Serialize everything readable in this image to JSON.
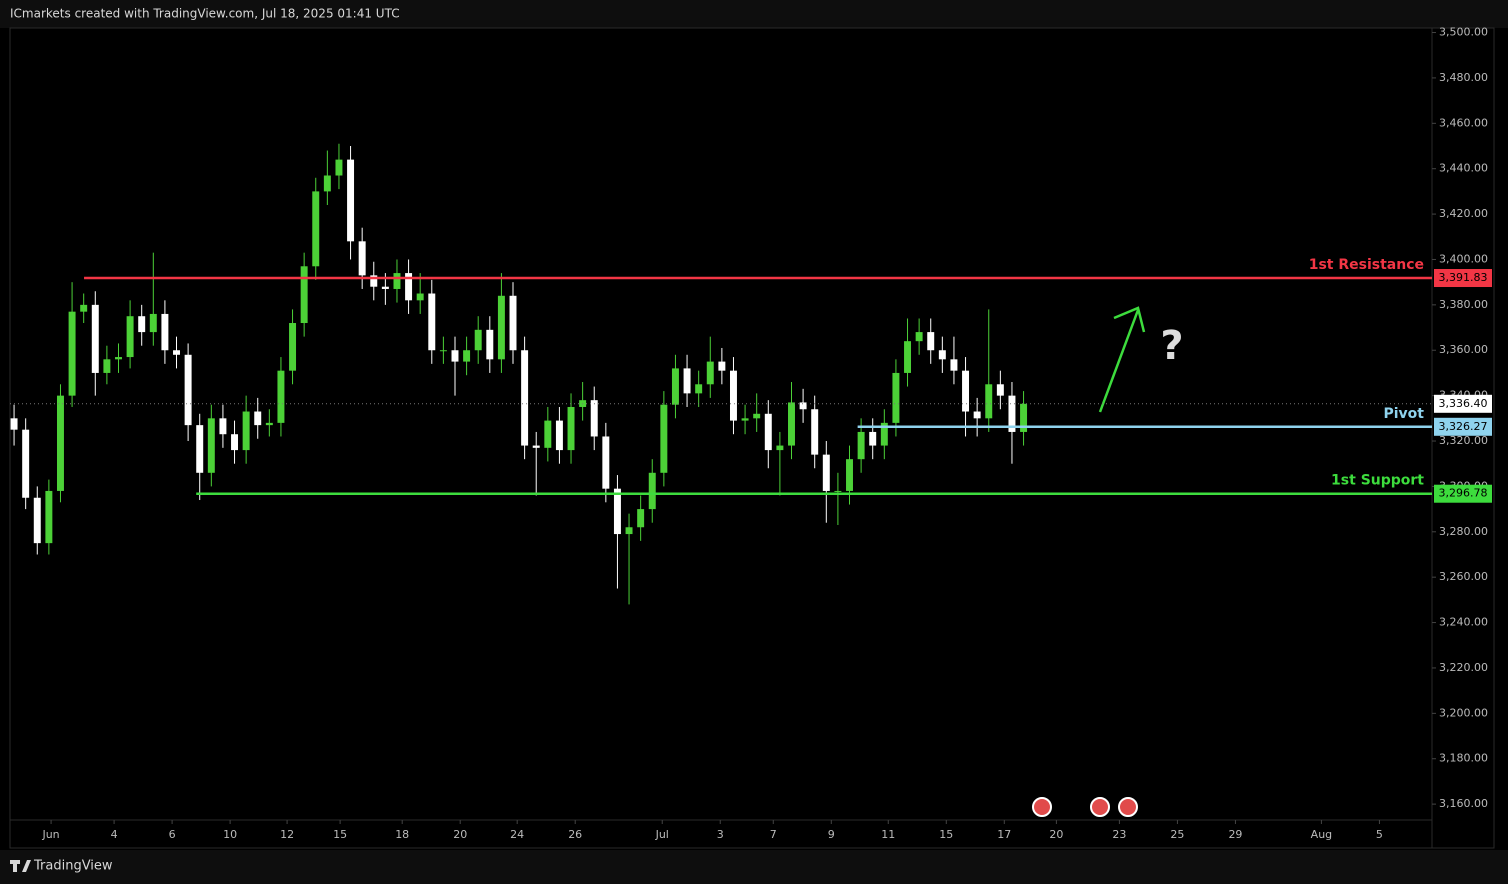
{
  "header": "ICmarkets created with TradingView.com, Jul 18, 2025 01:41 UTC",
  "footer": "TradingView",
  "chart_data": {
    "type": "candlestick",
    "up_color": "#4cd137",
    "down_color": "#ffffff",
    "xlim": [
      -0.35,
      122.2
    ],
    "xticks": [
      {
        "value": 3.19,
        "label": "Jun"
      },
      {
        "value": 8.62,
        "label": "4"
      },
      {
        "value": 13.62,
        "label": "6"
      },
      {
        "value": 18.62,
        "label": "10"
      },
      {
        "value": 23.53,
        "label": "12"
      },
      {
        "value": 28.1,
        "label": "15"
      },
      {
        "value": 33.45,
        "label": "18"
      },
      {
        "value": 38.45,
        "label": "20"
      },
      {
        "value": 43.36,
        "label": "24"
      },
      {
        "value": 48.36,
        "label": "26"
      },
      {
        "value": 55.86,
        "label": "Jul"
      },
      {
        "value": 60.86,
        "label": "3"
      },
      {
        "value": 65.43,
        "label": "7"
      },
      {
        "value": 70.43,
        "label": "9"
      },
      {
        "value": 75.34,
        "label": "11"
      },
      {
        "value": 80.34,
        "label": "15"
      },
      {
        "value": 85.34,
        "label": "17"
      },
      {
        "value": 89.83,
        "label": "20"
      },
      {
        "value": 95.26,
        "label": "23"
      },
      {
        "value": 100.26,
        "label": "25"
      },
      {
        "value": 105.26,
        "label": "29"
      },
      {
        "value": 112.67,
        "label": "Aug"
      },
      {
        "value": 117.67,
        "label": "5"
      }
    ],
    "ylim": [
      3153,
      3502
    ],
    "yticks": [
      {
        "value": 3160,
        "label": "3,160.00"
      },
      {
        "value": 3180,
        "label": "3,180.00"
      },
      {
        "value": 3200,
        "label": "3,200.00"
      },
      {
        "value": 3220,
        "label": "3,220.00"
      },
      {
        "value": 3240,
        "label": "3,240.00"
      },
      {
        "value": 3260,
        "label": "3,260.00"
      },
      {
        "value": 3280,
        "label": "3,280.00"
      },
      {
        "value": 3300,
        "label": "3,300.00"
      },
      {
        "value": 3320,
        "label": "3,320.00"
      },
      {
        "value": 3340,
        "label": "3,340.00"
      },
      {
        "value": 3360,
        "label": "3,360.00"
      },
      {
        "value": 3380,
        "label": "3,380.00"
      },
      {
        "value": 3400,
        "label": "3,400.00"
      },
      {
        "value": 3420,
        "label": "3,420.00"
      },
      {
        "value": 3440,
        "label": "3,440.00"
      },
      {
        "value": 3460,
        "label": "3,460.00"
      },
      {
        "value": 3480,
        "label": "3,480.00"
      },
      {
        "value": 3500,
        "label": "3,500.00"
      }
    ],
    "ohlc": [
      [
        3330,
        3336,
        3318,
        3325
      ],
      [
        3325,
        3330,
        3290,
        3295
      ],
      [
        3295,
        3300,
        3270,
        3275
      ],
      [
        3275,
        3303,
        3270,
        3298
      ],
      [
        3298,
        3345,
        3293,
        3340
      ],
      [
        3340,
        3390,
        3335,
        3377
      ],
      [
        3377,
        3385,
        3372,
        3380
      ],
      [
        3380,
        3386,
        3340,
        3350
      ],
      [
        3350,
        3362,
        3345,
        3356
      ],
      [
        3356,
        3363,
        3350,
        3357
      ],
      [
        3357,
        3382,
        3352,
        3375
      ],
      [
        3375,
        3380,
        3362,
        3368
      ],
      [
        3368,
        3403,
        3362,
        3376
      ],
      [
        3376,
        3382,
        3354,
        3360
      ],
      [
        3360,
        3366,
        3352,
        3358
      ],
      [
        3358,
        3363,
        3320,
        3327
      ],
      [
        3327,
        3332,
        3294,
        3306
      ],
      [
        3306,
        3336,
        3300,
        3330
      ],
      [
        3330,
        3336,
        3317,
        3323
      ],
      [
        3323,
        3329,
        3310,
        3316
      ],
      [
        3316,
        3340,
        3310,
        3333
      ],
      [
        3333,
        3339,
        3321,
        3327
      ],
      [
        3327,
        3334,
        3322,
        3328
      ],
      [
        3328,
        3357,
        3322,
        3351
      ],
      [
        3351,
        3378,
        3345,
        3372
      ],
      [
        3372,
        3403,
        3366,
        3397
      ],
      [
        3397,
        3436,
        3391,
        3430
      ],
      [
        3430,
        3448,
        3424,
        3437
      ],
      [
        3437,
        3451,
        3431,
        3444
      ],
      [
        3444,
        3450,
        3400,
        3408
      ],
      [
        3408,
        3414,
        3387,
        3393
      ],
      [
        3393,
        3399,
        3382,
        3388
      ],
      [
        3388,
        3394,
        3380,
        3387
      ],
      [
        3387,
        3400,
        3381,
        3394
      ],
      [
        3394,
        3400,
        3376,
        3382
      ],
      [
        3382,
        3394,
        3376,
        3385
      ],
      [
        3385,
        3391,
        3354,
        3360
      ],
      [
        3360,
        3366,
        3354,
        3360
      ],
      [
        3360,
        3366,
        3340,
        3355
      ],
      [
        3355,
        3366,
        3349,
        3360
      ],
      [
        3360,
        3375,
        3354,
        3369
      ],
      [
        3369,
        3375,
        3350,
        3356
      ],
      [
        3356,
        3394,
        3350,
        3384
      ],
      [
        3384,
        3390,
        3354,
        3360
      ],
      [
        3360,
        3366,
        3312,
        3318
      ],
      [
        3318,
        3324,
        3296,
        3317
      ],
      [
        3317,
        3335,
        3311,
        3329
      ],
      [
        3329,
        3335,
        3310,
        3316
      ],
      [
        3316,
        3341,
        3310,
        3335
      ],
      [
        3335,
        3346,
        3329,
        3338
      ],
      [
        3338,
        3344,
        3316,
        3322
      ],
      [
        3322,
        3328,
        3293,
        3299
      ],
      [
        3299,
        3305,
        3255,
        3279
      ],
      [
        3279,
        3288,
        3248,
        3282
      ],
      [
        3282,
        3296,
        3276,
        3290
      ],
      [
        3290,
        3312,
        3284,
        3306
      ],
      [
        3306,
        3342,
        3300,
        3336
      ],
      [
        3336,
        3358,
        3330,
        3352
      ],
      [
        3352,
        3358,
        3335,
        3341
      ],
      [
        3341,
        3351,
        3335,
        3345
      ],
      [
        3345,
        3366,
        3339,
        3355
      ],
      [
        3355,
        3361,
        3345,
        3351
      ],
      [
        3351,
        3357,
        3323,
        3329
      ],
      [
        3329,
        3336,
        3323,
        3330
      ],
      [
        3330,
        3341,
        3324,
        3332
      ],
      [
        3332,
        3338,
        3308,
        3316
      ],
      [
        3316,
        3324,
        3296,
        3318
      ],
      [
        3318,
        3346,
        3312,
        3337
      ],
      [
        3337,
        3343,
        3328,
        3334
      ],
      [
        3334,
        3340,
        3308,
        3314
      ],
      [
        3314,
        3320,
        3284,
        3298
      ],
      [
        3298,
        3306,
        3283,
        3298
      ],
      [
        3298,
        3318,
        3292,
        3312
      ],
      [
        3312,
        3330,
        3306,
        3324
      ],
      [
        3324,
        3330,
        3312,
        3318
      ],
      [
        3318,
        3334,
        3312,
        3328
      ],
      [
        3328,
        3356,
        3322,
        3350
      ],
      [
        3350,
        3374,
        3344,
        3364
      ],
      [
        3364,
        3374,
        3358,
        3368
      ],
      [
        3368,
        3374,
        3354,
        3360
      ],
      [
        3360,
        3366,
        3350,
        3356
      ],
      [
        3356,
        3366,
        3345,
        3351
      ],
      [
        3351,
        3357,
        3322,
        3333
      ],
      [
        3333,
        3339,
        3322,
        3330
      ],
      [
        3330,
        3378,
        3324,
        3345
      ],
      [
        3345,
        3351,
        3334,
        3340
      ],
      [
        3340,
        3346,
        3310,
        3324
      ],
      [
        3324,
        3342,
        3318,
        3336.4
      ]
    ],
    "last_price": {
      "value": 3336.4,
      "label": "3,336.40"
    },
    "levels": [
      {
        "name": "1st Resistance",
        "value": 3391.83,
        "label": "3,391.83",
        "color": "#f23645",
        "x_start": 6.03
      },
      {
        "name": "Pivot",
        "value": 3326.27,
        "label": "3,326.27",
        "color": "#8fd3ee",
        "x_start": 72.7
      },
      {
        "name": "1st Support",
        "value": 3296.78,
        "label": "3,296.78",
        "color": "#3ddc3d",
        "x_start": 15.7
      }
    ],
    "annotation": "?"
  }
}
